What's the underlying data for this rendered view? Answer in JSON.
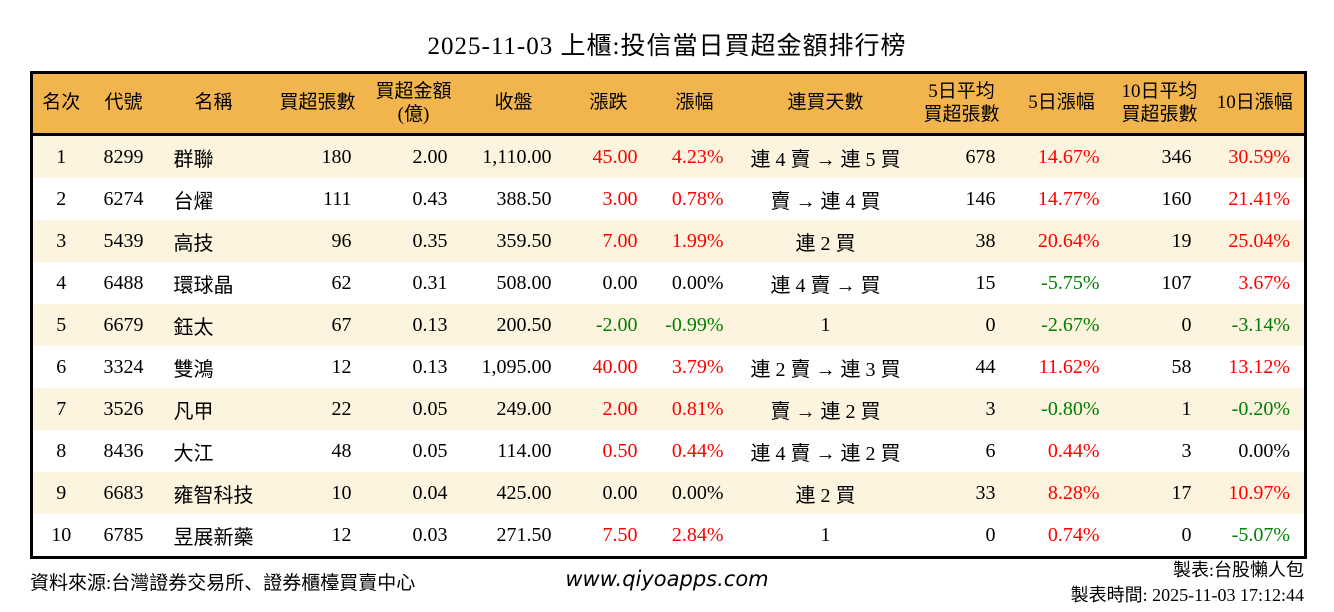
{
  "title": "2025-11-03 上櫃:投信當日買超金額排行榜",
  "colors": {
    "header_bg": "#F2B54D",
    "row_alt_bg": "#FCF4DE",
    "up_red": "#FE0000",
    "down_green": "#008000",
    "border": "#000000"
  },
  "table": {
    "headers": [
      "名次",
      "代號",
      "名稱",
      "買超張數",
      "買超金額\n(億)",
      "收盤",
      "漲跌",
      "漲幅",
      "連買天數",
      "5日平均\n買超張數",
      "5日漲幅",
      "10日平均\n買超張數",
      "10日漲幅"
    ],
    "rows": [
      [
        "1",
        "8299",
        "群聯",
        "180",
        "2.00",
        "1,110.00",
        {
          "t": "45.00",
          "c": "up"
        },
        {
          "t": "4.23%",
          "c": "up"
        },
        "連 4 賣 → 連 5 買",
        "678",
        {
          "t": "14.67%",
          "c": "up"
        },
        "346",
        {
          "t": "30.59%",
          "c": "up"
        }
      ],
      [
        "2",
        "6274",
        "台燿",
        "111",
        "0.43",
        "388.50",
        {
          "t": "3.00",
          "c": "up"
        },
        {
          "t": "0.78%",
          "c": "up"
        },
        "賣 → 連 4 買",
        "146",
        {
          "t": "14.77%",
          "c": "up"
        },
        "160",
        {
          "t": "21.41%",
          "c": "up"
        }
      ],
      [
        "3",
        "5439",
        "高技",
        "96",
        "0.35",
        "359.50",
        {
          "t": "7.00",
          "c": "up"
        },
        {
          "t": "1.99%",
          "c": "up"
        },
        "連 2 買",
        "38",
        {
          "t": "20.64%",
          "c": "up"
        },
        "19",
        {
          "t": "25.04%",
          "c": "up"
        }
      ],
      [
        "4",
        "6488",
        "環球晶",
        "62",
        "0.31",
        "508.00",
        "0.00",
        "0.00%",
        "連 4 賣 → 買",
        "15",
        {
          "t": "-5.75%",
          "c": "down"
        },
        "107",
        {
          "t": "3.67%",
          "c": "up"
        }
      ],
      [
        "5",
        "6679",
        "鈺太",
        "67",
        "0.13",
        "200.50",
        {
          "t": "-2.00",
          "c": "down"
        },
        {
          "t": "-0.99%",
          "c": "down"
        },
        "1",
        "0",
        {
          "t": "-2.67%",
          "c": "down"
        },
        "0",
        {
          "t": "-3.14%",
          "c": "down"
        }
      ],
      [
        "6",
        "3324",
        "雙鴻",
        "12",
        "0.13",
        "1,095.00",
        {
          "t": "40.00",
          "c": "up"
        },
        {
          "t": "3.79%",
          "c": "up"
        },
        "連 2 賣 → 連 3 買",
        "44",
        {
          "t": "11.62%",
          "c": "up"
        },
        "58",
        {
          "t": "13.12%",
          "c": "up"
        }
      ],
      [
        "7",
        "3526",
        "凡甲",
        "22",
        "0.05",
        "249.00",
        {
          "t": "2.00",
          "c": "up"
        },
        {
          "t": "0.81%",
          "c": "up"
        },
        "賣 → 連 2 買",
        "3",
        {
          "t": "-0.80%",
          "c": "down"
        },
        "1",
        {
          "t": "-0.20%",
          "c": "down"
        }
      ],
      [
        "8",
        "8436",
        "大江",
        "48",
        "0.05",
        "114.00",
        {
          "t": "0.50",
          "c": "up"
        },
        {
          "t": "0.44%",
          "c": "up"
        },
        "連 4 賣 → 連 2 買",
        "6",
        {
          "t": "0.44%",
          "c": "up"
        },
        "3",
        "0.00%"
      ],
      [
        "9",
        "6683",
        "雍智科技",
        "10",
        "0.04",
        "425.00",
        "0.00",
        "0.00%",
        "連 2 買",
        "33",
        {
          "t": "8.28%",
          "c": "up"
        },
        "17",
        {
          "t": "10.97%",
          "c": "up"
        }
      ],
      [
        "10",
        "6785",
        "昱展新藥",
        "12",
        "0.03",
        "271.50",
        {
          "t": "7.50",
          "c": "up"
        },
        {
          "t": "2.84%",
          "c": "up"
        },
        "1",
        "0",
        {
          "t": "0.74%",
          "c": "up"
        },
        "0",
        {
          "t": "-5.07%",
          "c": "down"
        }
      ]
    ]
  },
  "footer": {
    "source": "資料來源:台灣證券交易所、證券櫃檯買賣中心",
    "website": "www.qiyoapps.com",
    "maker": "製表:台股懶人包",
    "made_time": "製表時間: 2025-11-03 17:12:44"
  }
}
